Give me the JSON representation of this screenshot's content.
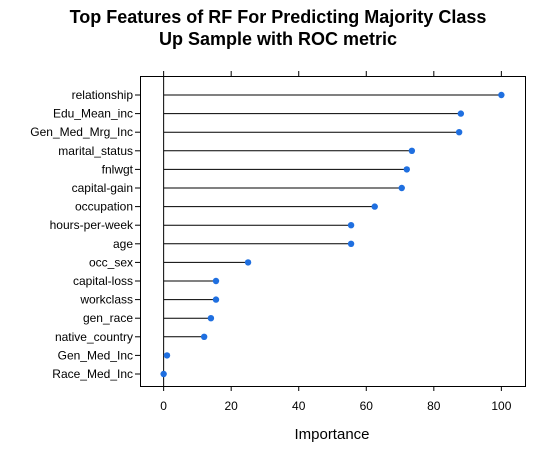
{
  "chart_data": {
    "type": "dot",
    "title_lines": [
      "Top Features of RF For Predicting Majority Class",
      "Up Sample with ROC metric"
    ],
    "xlabel": "Importance",
    "ylabel": "",
    "xlim": [
      -7,
      107
    ],
    "xticks": [
      0,
      20,
      40,
      60,
      80,
      100
    ],
    "grid": false,
    "point_color": "#1f6fe0",
    "categories": [
      "relationship",
      "Edu_Mean_inc",
      "Gen_Med_Mrg_Inc",
      "marital_status",
      "fnlwgt",
      "capital-gain",
      "occupation",
      "hours-per-week",
      "age",
      "occ_sex",
      "capital-loss",
      "workclass",
      "gen_race",
      "native_country",
      "Gen_Med_Inc",
      "Race_Med_Inc"
    ],
    "values": [
      100,
      88,
      87.5,
      73.5,
      72,
      70.5,
      62.5,
      55.5,
      55.5,
      25,
      15.5,
      15.5,
      14,
      12,
      1,
      0
    ]
  }
}
